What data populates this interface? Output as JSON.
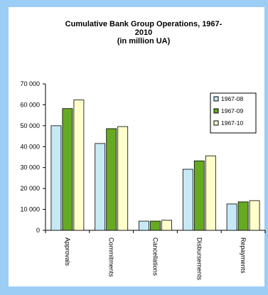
{
  "chart_data": {
    "type": "bar",
    "title": "Cumulative Bank Group Operations, 1967-2010",
    "title_lines": [
      "Cumulative Bank Group Operations, 1967-",
      "2010",
      "(in million UA)"
    ],
    "subtitle": "(in million UA)",
    "xlabel": "",
    "ylabel": "",
    "ylim": [
      0,
      70000
    ],
    "yticks": [
      0,
      10000,
      20000,
      30000,
      40000,
      50000,
      60000,
      70000
    ],
    "ytick_labels": [
      "0",
      "10 000",
      "20 000",
      "30 000",
      "40 000",
      "50 000",
      "60 000",
      "70 000"
    ],
    "categories": [
      "Approvals",
      "Commitments",
      "Cancellations",
      "Disbursements",
      "Repayments"
    ],
    "series": [
      {
        "name": "1967-08",
        "color": "#c6e9f5",
        "values": [
          50000,
          41500,
          4400,
          29200,
          12600
        ]
      },
      {
        "name": "1967-09",
        "color": "#66aa22",
        "values": [
          58200,
          48600,
          4400,
          33200,
          13600
        ]
      },
      {
        "name": "1967-10",
        "color": "#ffffcc",
        "values": [
          62300,
          49600,
          4800,
          35600,
          14200
        ]
      }
    ],
    "grid": false,
    "legend_position": "top-right"
  }
}
